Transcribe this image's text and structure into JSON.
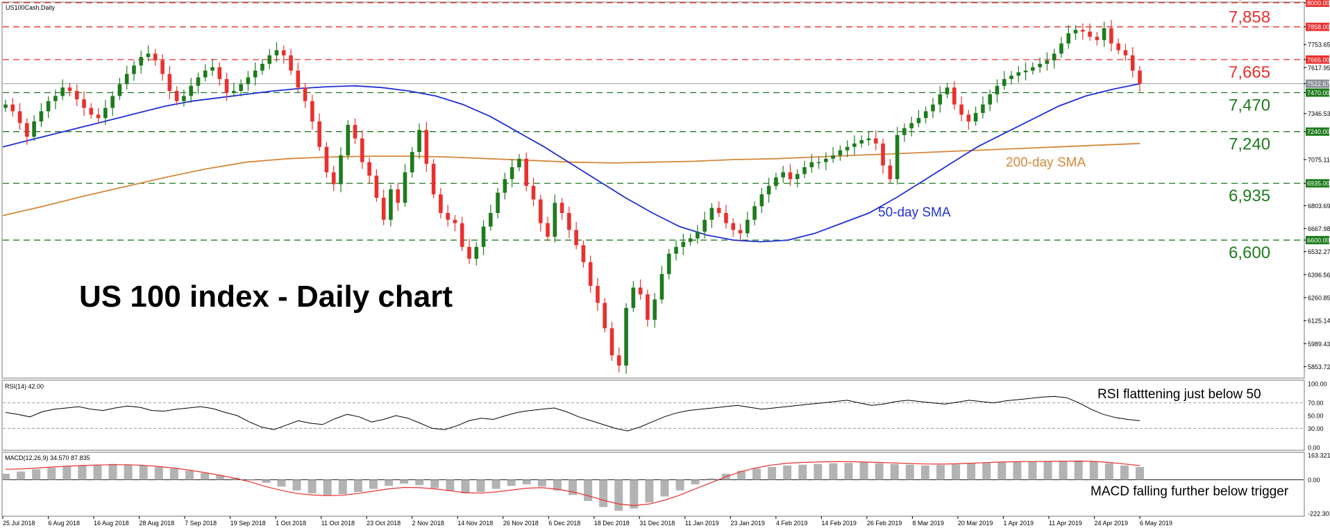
{
  "window": {
    "symbol_label": "US100Cash,Daily"
  },
  "title": "US 100 index - Daily chart",
  "annotations": {
    "sma50": "50-day SMA",
    "sma200": "200-day SMA",
    "rsi_note": "RSI flatttening just below 50",
    "macd_note": "MACD falling further below trigger"
  },
  "colors": {
    "up": "#1e7b1e",
    "down": "#e8312f",
    "sma50": "#1f2fd6",
    "sma200": "#d4883a",
    "resistance": "#e8312f",
    "support": "#1e7b1e",
    "grid": "#aaaaaa"
  },
  "chart_data": [
    {
      "type": "candlestick",
      "title": "US 100 index - Daily chart",
      "ylim": [
        5790,
        8000
      ],
      "price_axis_ticks": [
        "8000.00",
        "7858.00",
        "7753.65",
        "7665.00",
        "7617.95",
        "7522.67",
        "7470.00",
        "7346.53",
        "7240.00",
        "7075.11",
        "6935.00",
        "6803.69",
        "6667.98",
        "6600.00",
        "6532.27",
        "6396.56",
        "6260.85",
        "6125.14",
        "5989.43",
        "5853.72"
      ],
      "x_axis_labels": [
        "25 Jul 2018",
        "6 Aug 2018",
        "16 Aug 2018",
        "28 Aug 2018",
        "7 Sep 2018",
        "19 Sep 2018",
        "1 Oct 2018",
        "11 Oct 2018",
        "23 Oct 2018",
        "2 Nov 2018",
        "14 Nov 2018",
        "26 Nov 2018",
        "6 Dec 2018",
        "18 Dec 2018",
        "31 Dec 2018",
        "11 Jan 2019",
        "23 Jan 2019",
        "4 Feb 2019",
        "14 Feb 2019",
        "26 Feb 2019",
        "8 Mar 2019",
        "20 Mar 2019",
        "1 Apr 2019",
        "11 Apr 2019",
        "24 Apr 2019",
        "6 May 2019"
      ],
      "current_price": 7522.67,
      "horizontal_levels": [
        {
          "label": "8,000",
          "value": 8000,
          "kind": "resistance"
        },
        {
          "label": "7,858",
          "value": 7858,
          "kind": "resistance"
        },
        {
          "label": "7,665",
          "value": 7665,
          "kind": "resistance"
        },
        {
          "label": "7,470",
          "value": 7470,
          "kind": "support"
        },
        {
          "label": "7,240",
          "value": 7240,
          "kind": "support"
        },
        {
          "label": "6,935",
          "value": 6935,
          "kind": "support"
        },
        {
          "label": "6,600",
          "value": 6600,
          "kind": "support"
        }
      ],
      "close_path": [
        7400,
        7360,
        7290,
        7210,
        7300,
        7360,
        7420,
        7450,
        7500,
        7480,
        7430,
        7380,
        7340,
        7320,
        7380,
        7450,
        7520,
        7580,
        7630,
        7680,
        7700,
        7660,
        7580,
        7480,
        7420,
        7450,
        7510,
        7560,
        7600,
        7620,
        7550,
        7470,
        7480,
        7520,
        7560,
        7600,
        7640,
        7690,
        7720,
        7690,
        7600,
        7500,
        7420,
        7300,
        7150,
        7000,
        6930,
        7100,
        7280,
        7200,
        7060,
        6980,
        6850,
        6720,
        6900,
        6820,
        7000,
        7120,
        7250,
        7050,
        6870,
        6760,
        6720,
        6700,
        6560,
        6490,
        6560,
        6680,
        6760,
        6880,
        6960,
        7030,
        7080,
        6920,
        6840,
        6700,
        6620,
        6820,
        6760,
        6660,
        6570,
        6470,
        6330,
        6230,
        6080,
        5920,
        5860,
        6200,
        6320,
        6280,
        6130,
        6250,
        6400,
        6520,
        6560,
        6590,
        6610,
        6650,
        6720,
        6790,
        6760,
        6700,
        6660,
        6640,
        6720,
        6800,
        6870,
        6920,
        6970,
        7000,
        6960,
        6990,
        7030,
        7060,
        7060,
        7080,
        7100,
        7130,
        7150,
        7170,
        7190,
        7200,
        7170,
        7040,
        6960,
        7220,
        7260,
        7290,
        7320,
        7360,
        7400,
        7460,
        7500,
        7400,
        7340,
        7300,
        7350,
        7400,
        7460,
        7510,
        7550,
        7570,
        7590,
        7600,
        7620,
        7640,
        7660,
        7700,
        7760,
        7820,
        7840,
        7830,
        7800,
        7780,
        7850,
        7760,
        7720,
        7690,
        7600,
        7522.67
      ],
      "sma50_path": [
        7150,
        7190,
        7230,
        7270,
        7310,
        7350,
        7390,
        7420,
        7440,
        7460,
        7480,
        7495,
        7505,
        7510,
        7500,
        7480,
        7450,
        7400,
        7330,
        7240,
        7150,
        7050,
        6950,
        6850,
        6760,
        6680,
        6630,
        6600,
        6590,
        6600,
        6640,
        6700,
        6760,
        6850,
        6950,
        7050,
        7150,
        7230,
        7310,
        7390,
        7450,
        7490,
        7522
      ],
      "sma200_path": [
        6745,
        6800,
        6860,
        6915,
        6970,
        7020,
        7060,
        7080,
        7090,
        7095,
        7095,
        7090,
        7080,
        7070,
        7060,
        7055,
        7060,
        7065,
        7075,
        7080,
        7090,
        7100,
        7110,
        7120,
        7130,
        7140,
        7150,
        7160,
        7170
      ],
      "indicators": {
        "rsi": {
          "label": "RSI(14) 42.00",
          "ylim": [
            0,
            100
          ],
          "ticks": [
            "100.00",
            "70.00",
            "50.00",
            "30.00",
            "0.00"
          ],
          "levels": [
            70,
            30
          ],
          "path": [
            55,
            52,
            48,
            56,
            60,
            62,
            64,
            60,
            58,
            62,
            65,
            63,
            58,
            57,
            60,
            62,
            64,
            61,
            55,
            50,
            40,
            32,
            28,
            35,
            42,
            38,
            36,
            45,
            52,
            48,
            40,
            44,
            50,
            46,
            38,
            30,
            28,
            34,
            42,
            46,
            44,
            50,
            55,
            58,
            60,
            62,
            56,
            48,
            42,
            36,
            30,
            26,
            32,
            40,
            48,
            54,
            58,
            60,
            62,
            64,
            66,
            63,
            60,
            62,
            64,
            66,
            68,
            70,
            72,
            74,
            70,
            66,
            68,
            72,
            74,
            72,
            70,
            68,
            71,
            74,
            72,
            70,
            73,
            75,
            77,
            79,
            80,
            78,
            70,
            60,
            52,
            47,
            44,
            42
          ]
        },
        "macd": {
          "label": "MACD(12,26,9) 34.570 87.835",
          "ylim": [
            -222.303,
            163.321
          ],
          "ticks": [
            "163.321",
            "0.00",
            "-222.303"
          ],
          "histogram": [
            40,
            55,
            70,
            80,
            90,
            95,
            100,
            105,
            100,
            95,
            85,
            75,
            60,
            45,
            30,
            15,
            0,
            -20,
            -45,
            -70,
            -90,
            -100,
            -95,
            -80,
            -60,
            -40,
            -25,
            -35,
            -55,
            -75,
            -90,
            -80,
            -60,
            -40,
            -30,
            -45,
            -70,
            -100,
            -140,
            -180,
            -205,
            -190,
            -150,
            -110,
            -70,
            -30,
            10,
            40,
            60,
            75,
            85,
            95,
            100,
            105,
            110,
            112,
            115,
            110,
            105,
            100,
            95,
            98,
            102,
            108,
            112,
            115,
            118,
            120,
            122,
            125,
            128,
            120,
            110,
            95,
            85
          ],
          "signal": [
            70,
            72,
            78,
            85,
            90,
            95,
            98,
            100,
            100,
            96,
            88,
            78,
            64,
            48,
            30,
            10,
            -15,
            -45,
            -70,
            -90,
            -100,
            -105,
            -102,
            -90,
            -75,
            -60,
            -50,
            -52,
            -60,
            -72,
            -85,
            -88,
            -80,
            -68,
            -55,
            -52,
            -62,
            -80,
            -105,
            -135,
            -160,
            -170,
            -160,
            -135,
            -100,
            -60,
            -20,
            20,
            55,
            80,
            98,
            110,
            115,
            118,
            120,
            120,
            118,
            115,
            112,
            108,
            105,
            104,
            106,
            110,
            114,
            118,
            120,
            121,
            122,
            123,
            124,
            122,
            115,
            105,
            94
          ]
        }
      }
    }
  ]
}
